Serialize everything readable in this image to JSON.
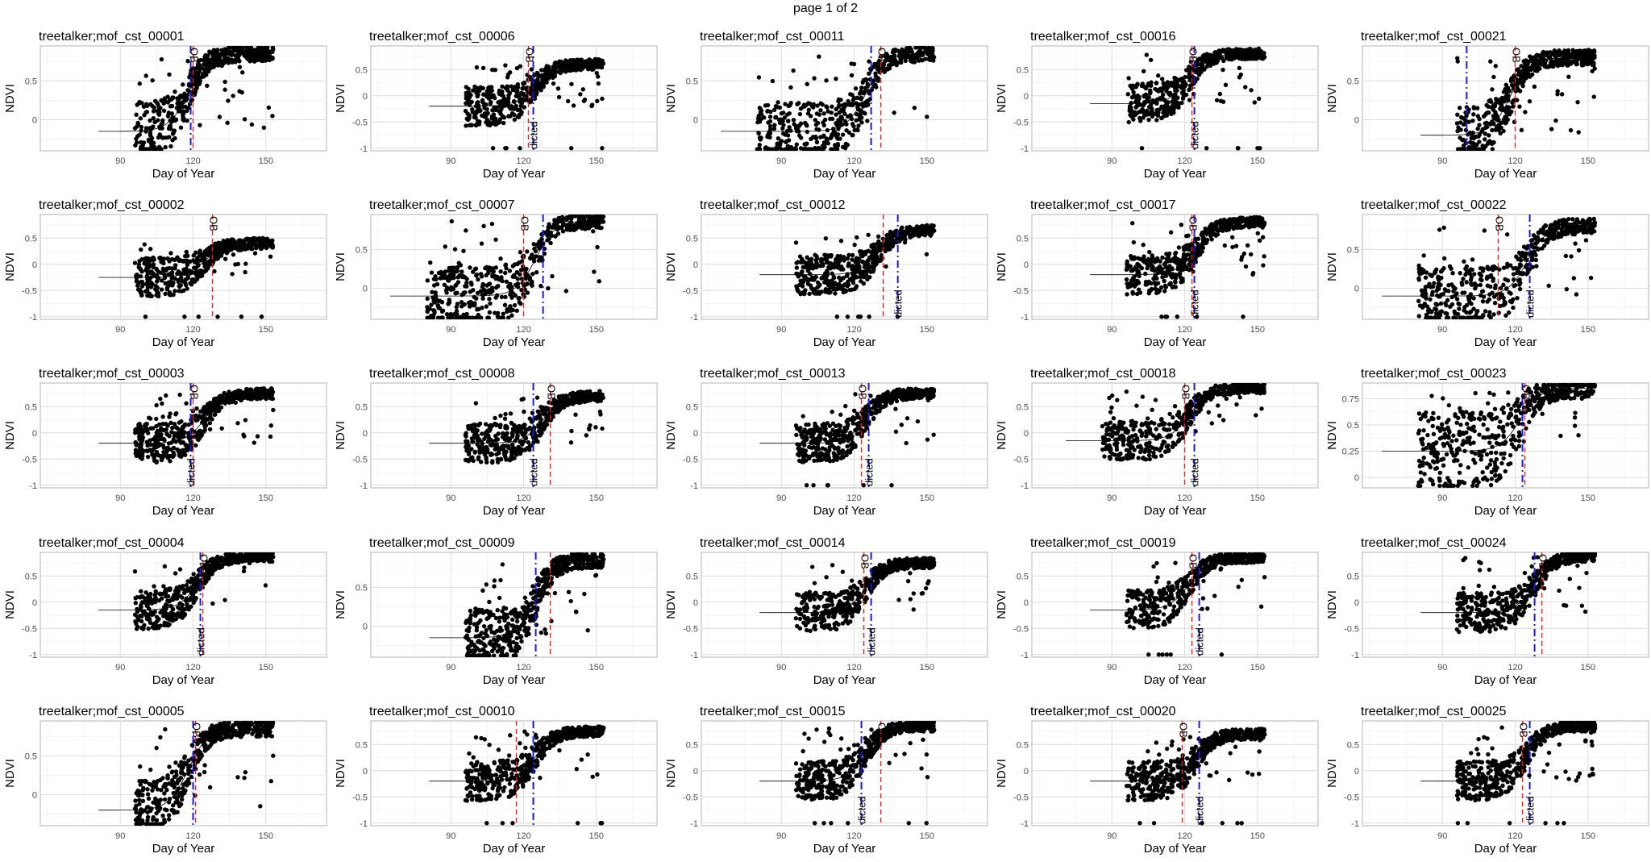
{
  "page_label": "page 1 of 2",
  "colors": {
    "point": "#000000",
    "panel_border": "#b3b3b3",
    "grid_major": "#dcdcdc",
    "grid_minor": "#ececec",
    "observed_line": "#e8221b",
    "predicted_line": "#1a1ad6",
    "text": "#000000",
    "tick_text": "#4d4d4d"
  },
  "chart_data": [
    {
      "type": "scatter",
      "title": "treetalker;mof_cst_00001",
      "xlabel": "Day of Year",
      "ylabel": "NDVI",
      "xlim": [
        57,
        175
      ],
      "ylim": [
        -0.4,
        0.95
      ],
      "xticks": [
        90,
        120,
        150
      ],
      "yticks": [
        0,
        0.5
      ],
      "seed": 1,
      "start": 96,
      "base": -0.15,
      "top": 0.85,
      "onset": 118,
      "observed_doy": 120,
      "predicted_doy": 119,
      "obs_label": "OB",
      "pred_label": "",
      "outliers": false,
      "grid": true
    },
    {
      "type": "scatter",
      "title": "treetalker;mof_cst_00002",
      "xlabel": "Day of Year",
      "ylabel": "NDVI",
      "xlim": [
        57,
        175
      ],
      "ylim": [
        -1.05,
        0.95
      ],
      "xticks": [
        90,
        120,
        150
      ],
      "yticks": [
        -1,
        -0.5,
        0,
        0.5
      ],
      "seed": 2,
      "start": 96,
      "base": -0.25,
      "top": 0.4,
      "onset": 125,
      "observed_doy": 128,
      "predicted_doy": null,
      "obs_label": "OB",
      "pred_label": "",
      "outliers": true,
      "grid": true
    },
    {
      "type": "scatter",
      "title": "treetalker;mof_cst_00003",
      "xlabel": "Day of Year",
      "ylabel": "NDVI",
      "xlim": [
        57,
        175
      ],
      "ylim": [
        -1.05,
        0.95
      ],
      "xticks": [
        90,
        120,
        150
      ],
      "yticks": [
        -1,
        -0.5,
        0,
        0.5
      ],
      "seed": 3,
      "start": 96,
      "base": -0.2,
      "top": 0.75,
      "onset": 125,
      "observed_doy": 120,
      "predicted_doy": 119,
      "obs_label": "OB",
      "pred_label": "dicted",
      "outliers": false,
      "grid": true
    },
    {
      "type": "scatter",
      "title": "treetalker;mof_cst_00004",
      "xlabel": "Day of Year",
      "ylabel": "NDVI",
      "xlim": [
        57,
        175
      ],
      "ylim": [
        -1.05,
        0.95
      ],
      "xticks": [
        90,
        120,
        150
      ],
      "yticks": [
        -1,
        -0.5,
        0,
        0.5
      ],
      "seed": 4,
      "start": 96,
      "base": -0.15,
      "top": 0.87,
      "onset": 122,
      "observed_doy": 124,
      "predicted_doy": 123,
      "obs_label": "OB",
      "pred_label": "dicted",
      "outliers": false,
      "grid": true
    },
    {
      "type": "scatter",
      "title": "treetalker;mof_cst_00005",
      "xlabel": "Day of Year",
      "ylabel": "NDVI",
      "xlim": [
        57,
        175
      ],
      "ylim": [
        -0.4,
        0.95
      ],
      "xticks": [
        90,
        120,
        150
      ],
      "yticks": [
        0,
        0.5
      ],
      "seed": 5,
      "start": 96,
      "base": -0.2,
      "top": 0.85,
      "onset": 118,
      "observed_doy": 121,
      "predicted_doy": 120,
      "obs_label": "OB",
      "pred_label": "",
      "outliers": false,
      "grid": true
    },
    {
      "type": "scatter",
      "title": "treetalker;mof_cst_00006",
      "xlabel": "Day of Year",
      "ylabel": "NDVI",
      "xlim": [
        57,
        175
      ],
      "ylim": [
        -1.05,
        0.95
      ],
      "xticks": [
        90,
        120,
        150
      ],
      "yticks": [
        -1,
        -0.5,
        0,
        0.5
      ],
      "seed": 6,
      "start": 96,
      "base": -0.2,
      "top": 0.6,
      "onset": 125,
      "observed_doy": 122,
      "predicted_doy": 124,
      "obs_label": "OB",
      "pred_label": "dicted",
      "outliers": true,
      "grid": true
    },
    {
      "type": "scatter",
      "title": "treetalker;mof_cst_00007",
      "xlabel": "Day of Year",
      "ylabel": "NDVI",
      "xlim": [
        57,
        175
      ],
      "ylim": [
        -0.4,
        0.95
      ],
      "xticks": [
        90,
        120,
        150
      ],
      "yticks": [
        0,
        0.5
      ],
      "seed": 7,
      "start": 80,
      "base": -0.1,
      "top": 0.87,
      "onset": 125,
      "observed_doy": 120,
      "predicted_doy": 128,
      "obs_label": "OB",
      "pred_label": "",
      "outliers": false,
      "grid": true
    },
    {
      "type": "scatter",
      "title": "treetalker;mof_cst_00008",
      "xlabel": "Day of Year",
      "ylabel": "NDVI",
      "xlim": [
        57,
        175
      ],
      "ylim": [
        -1.05,
        0.95
      ],
      "xticks": [
        90,
        120,
        150
      ],
      "yticks": [
        -1,
        -0.5,
        0,
        0.5
      ],
      "seed": 8,
      "start": 96,
      "base": -0.2,
      "top": 0.7,
      "onset": 128,
      "observed_doy": 131,
      "predicted_doy": 124,
      "obs_label": "OB",
      "pred_label": "dicted",
      "outliers": false,
      "grid": true
    },
    {
      "type": "scatter",
      "title": "treetalker;mof_cst_00009",
      "xlabel": "Day of Year",
      "ylabel": "NDVI",
      "xlim": [
        57,
        175
      ],
      "ylim": [
        -0.4,
        0.95
      ],
      "xticks": [
        90,
        120,
        150
      ],
      "yticks": [
        0,
        0.5
      ],
      "seed": 9,
      "start": 96,
      "base": -0.15,
      "top": 0.85,
      "onset": 125,
      "observed_doy": 131,
      "predicted_doy": 125,
      "obs_label": "",
      "pred_label": "",
      "outliers": false,
      "grid": true
    },
    {
      "type": "scatter",
      "title": "treetalker;mof_cst_00010",
      "xlabel": "Day of Year",
      "ylabel": "NDVI",
      "xlim": [
        57,
        175
      ],
      "ylim": [
        -1.05,
        0.95
      ],
      "xticks": [
        90,
        120,
        150
      ],
      "yticks": [
        -1,
        -0.5,
        0,
        0.5
      ],
      "seed": 10,
      "start": 96,
      "base": -0.2,
      "top": 0.75,
      "onset": 125,
      "observed_doy": 117,
      "predicted_doy": 124,
      "obs_label": "",
      "pred_label": "",
      "outliers": true,
      "grid": true
    },
    {
      "type": "scatter",
      "title": "treetalker;mof_cst_00011",
      "xlabel": "Day of Year",
      "ylabel": "NDVI",
      "xlim": [
        57,
        175
      ],
      "ylim": [
        -0.4,
        0.95
      ],
      "xticks": [
        90,
        120,
        150
      ],
      "yticks": [
        0,
        0.5
      ],
      "seed": 11,
      "start": 80,
      "base": -0.15,
      "top": 0.85,
      "onset": 125,
      "observed_doy": 131,
      "predicted_doy": 127,
      "obs_label": "OB",
      "pred_label": "",
      "outliers": false,
      "grid": true
    },
    {
      "type": "scatter",
      "title": "treetalker;mof_cst_00012",
      "xlabel": "Day of Year",
      "ylabel": "NDVI",
      "xlim": [
        57,
        175
      ],
      "ylim": [
        -1.05,
        0.95
      ],
      "xticks": [
        90,
        120,
        150
      ],
      "yticks": [
        -1,
        -0.5,
        0,
        0.5
      ],
      "seed": 12,
      "start": 96,
      "base": -0.2,
      "top": 0.65,
      "onset": 130,
      "observed_doy": 132,
      "predicted_doy": 138,
      "obs_label": "",
      "pred_label": "dicted",
      "outliers": true,
      "grid": true
    },
    {
      "type": "scatter",
      "title": "treetalker;mof_cst_00013",
      "xlabel": "Day of Year",
      "ylabel": "NDVI",
      "xlim": [
        57,
        175
      ],
      "ylim": [
        -1.05,
        0.95
      ],
      "xticks": [
        90,
        120,
        150
      ],
      "yticks": [
        -1,
        -0.5,
        0,
        0.5
      ],
      "seed": 13,
      "start": 96,
      "base": -0.2,
      "top": 0.75,
      "onset": 125,
      "observed_doy": 123,
      "predicted_doy": 126,
      "obs_label": "OB",
      "pred_label": "dicted",
      "outliers": true,
      "grid": true
    },
    {
      "type": "scatter",
      "title": "treetalker;mof_cst_00014",
      "xlabel": "Day of Year",
      "ylabel": "NDVI",
      "xlim": [
        57,
        175
      ],
      "ylim": [
        -1.05,
        0.95
      ],
      "xticks": [
        90,
        120,
        150
      ],
      "yticks": [
        -1,
        -0.5,
        0,
        0.5
      ],
      "seed": 14,
      "start": 96,
      "base": -0.2,
      "top": 0.75,
      "onset": 125,
      "observed_doy": 124,
      "predicted_doy": 127,
      "obs_label": "OB",
      "pred_label": "dicted",
      "outliers": false,
      "grid": true
    },
    {
      "type": "scatter",
      "title": "treetalker;mof_cst_00015",
      "xlabel": "Day of Year",
      "ylabel": "NDVI",
      "xlim": [
        57,
        175
      ],
      "ylim": [
        -1.05,
        0.95
      ],
      "xticks": [
        90,
        120,
        150
      ],
      "yticks": [
        -1,
        -0.5,
        0,
        0.5
      ],
      "seed": 15,
      "start": 96,
      "base": -0.2,
      "top": 0.85,
      "onset": 125,
      "observed_doy": 131,
      "predicted_doy": 123,
      "obs_label": "OB",
      "pred_label": "dicted",
      "outliers": true,
      "grid": true
    },
    {
      "type": "scatter",
      "title": "treetalker;mof_cst_00016",
      "xlabel": "Day of Year",
      "ylabel": "NDVI",
      "xlim": [
        57,
        175
      ],
      "ylim": [
        -1.05,
        0.95
      ],
      "xticks": [
        90,
        120,
        150
      ],
      "yticks": [
        -1,
        -0.5,
        0,
        0.5
      ],
      "seed": 16,
      "start": 96,
      "base": -0.15,
      "top": 0.8,
      "onset": 122,
      "observed_doy": 123,
      "predicted_doy": 124,
      "obs_label": "OB",
      "pred_label": "dicted",
      "outliers": true,
      "grid": true
    },
    {
      "type": "scatter",
      "title": "treetalker;mof_cst_00017",
      "xlabel": "Day of Year",
      "ylabel": "NDVI",
      "xlim": [
        57,
        175
      ],
      "ylim": [
        -1.05,
        0.95
      ],
      "xticks": [
        90,
        120,
        150
      ],
      "yticks": [
        -1,
        -0.5,
        0,
        0.5
      ],
      "seed": 17,
      "start": 96,
      "base": -0.2,
      "top": 0.8,
      "onset": 125,
      "observed_doy": 123,
      "predicted_doy": 124,
      "obs_label": "OB",
      "pred_label": "dicted",
      "outliers": true,
      "grid": true
    },
    {
      "type": "scatter",
      "title": "treetalker;mof_cst_00018",
      "xlabel": "Day of Year",
      "ylabel": "NDVI",
      "xlim": [
        57,
        175
      ],
      "ylim": [
        -1.05,
        0.95
      ],
      "xticks": [
        90,
        120,
        150
      ],
      "yticks": [
        -1,
        -0.5,
        0,
        0.5
      ],
      "seed": 18,
      "start": 86,
      "base": -0.15,
      "top": 0.85,
      "onset": 122,
      "observed_doy": 120,
      "predicted_doy": 124,
      "obs_label": "OB",
      "pred_label": "dicted",
      "outliers": false,
      "grid": true
    },
    {
      "type": "scatter",
      "title": "treetalker;mof_cst_00019",
      "xlabel": "Day of Year",
      "ylabel": "NDVI",
      "xlim": [
        57,
        175
      ],
      "ylim": [
        -1.05,
        0.95
      ],
      "xticks": [
        90,
        120,
        150
      ],
      "yticks": [
        -1,
        -0.5,
        0,
        0.5
      ],
      "seed": 19,
      "start": 96,
      "base": -0.15,
      "top": 0.85,
      "onset": 122,
      "observed_doy": 123,
      "predicted_doy": 126,
      "obs_label": "OB",
      "pred_label": "dicted",
      "outliers": true,
      "grid": true
    },
    {
      "type": "scatter",
      "title": "treetalker;mof_cst_00020",
      "xlabel": "Day of Year",
      "ylabel": "NDVI",
      "xlim": [
        57,
        175
      ],
      "ylim": [
        -1.05,
        0.95
      ],
      "xticks": [
        90,
        120,
        150
      ],
      "yticks": [
        -1,
        -0.5,
        0,
        0.5
      ],
      "seed": 20,
      "start": 96,
      "base": -0.2,
      "top": 0.7,
      "onset": 125,
      "observed_doy": 119,
      "predicted_doy": 126,
      "obs_label": "OB",
      "pred_label": "dicted",
      "outliers": true,
      "grid": true
    },
    {
      "type": "scatter",
      "title": "treetalker;mof_cst_00021",
      "xlabel": "Day of Year",
      "ylabel": "NDVI",
      "xlim": [
        57,
        175
      ],
      "ylim": [
        -0.4,
        0.95
      ],
      "xticks": [
        90,
        120,
        150
      ],
      "yticks": [
        0,
        0.5
      ],
      "seed": 21,
      "start": 96,
      "base": -0.2,
      "top": 0.8,
      "onset": 118,
      "observed_doy": 120,
      "predicted_doy": 100,
      "obs_label": "OB",
      "pred_label": "",
      "outliers": false,
      "grid": true
    },
    {
      "type": "scatter",
      "title": "treetalker;mof_cst_00022",
      "xlabel": "Day of Year",
      "ylabel": "NDVI",
      "xlim": [
        57,
        175
      ],
      "ylim": [
        -0.4,
        0.95
      ],
      "xticks": [
        90,
        120,
        150
      ],
      "yticks": [
        0,
        0.5
      ],
      "seed": 22,
      "start": 80,
      "base": -0.1,
      "top": 0.8,
      "onset": 125,
      "observed_doy": 113,
      "predicted_doy": 126,
      "obs_label": "OB",
      "pred_label": "dicted",
      "outliers": false,
      "grid": true
    },
    {
      "type": "scatter",
      "title": "treetalker;mof_cst_00023",
      "xlabel": "Day of Year",
      "ylabel": "NDVI",
      "xlim": [
        57,
        175
      ],
      "ylim": [
        -0.1,
        0.9
      ],
      "xticks": [
        90,
        120,
        150
      ],
      "yticks": [
        0,
        0.25,
        0.5,
        0.75
      ],
      "seed": 23,
      "start": 80,
      "base": 0.25,
      "top": 0.85,
      "onset": 122,
      "observed_doy": 124,
      "predicted_doy": 123,
      "obs_label": "OB",
      "pred_label": "",
      "outliers": false,
      "grid": true
    },
    {
      "type": "scatter",
      "title": "treetalker;mof_cst_00024",
      "xlabel": "Day of Year",
      "ylabel": "NDVI",
      "xlim": [
        57,
        175
      ],
      "ylim": [
        -1.05,
        0.95
      ],
      "xticks": [
        90,
        120,
        150
      ],
      "yticks": [
        -1,
        -0.5,
        0,
        0.5
      ],
      "seed": 24,
      "start": 96,
      "base": -0.2,
      "top": 0.87,
      "onset": 128,
      "observed_doy": 131,
      "predicted_doy": 128,
      "obs_label": "OB",
      "pred_label": "",
      "outliers": false,
      "grid": true
    },
    {
      "type": "scatter",
      "title": "treetalker;mof_cst_00025",
      "xlabel": "Day of Year",
      "ylabel": "NDVI",
      "xlim": [
        57,
        175
      ],
      "ylim": [
        -1.05,
        0.95
      ],
      "xticks": [
        90,
        120,
        150
      ],
      "yticks": [
        -1,
        -0.5,
        0,
        0.5
      ],
      "seed": 25,
      "start": 96,
      "base": -0.2,
      "top": 0.85,
      "onset": 125,
      "observed_doy": 123,
      "predicted_doy": 126,
      "obs_label": "OB",
      "pred_label": "dicted",
      "outliers": true,
      "grid": true
    }
  ]
}
